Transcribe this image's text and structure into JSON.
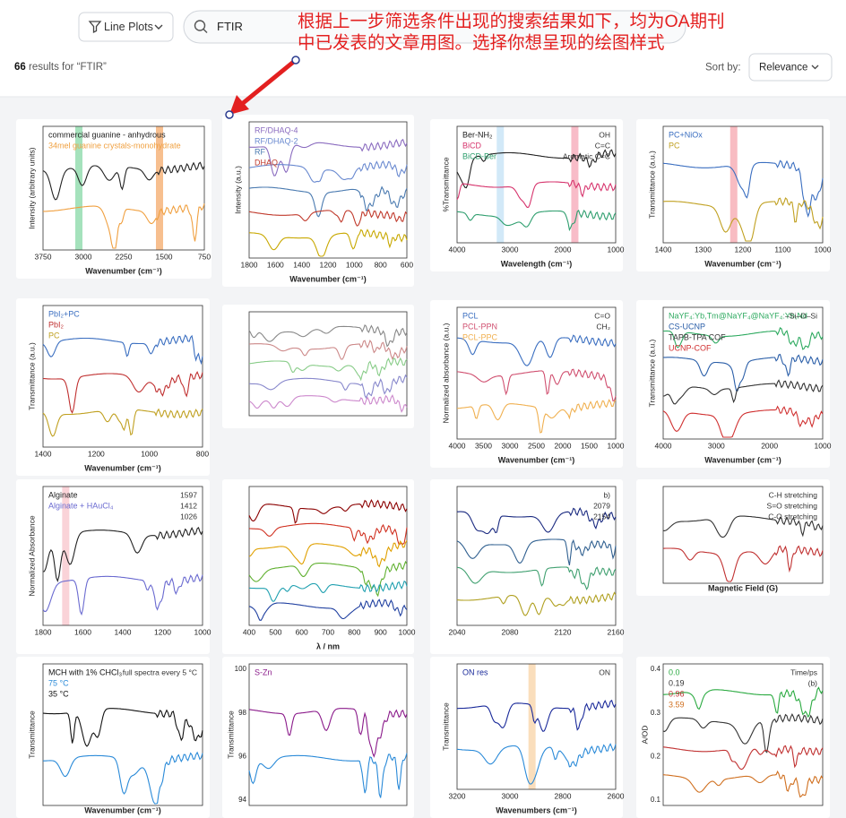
{
  "toolbar": {
    "filter": "Line Plots",
    "search": "FTIR",
    "sort_label": "Sort by:",
    "sort": "Relevance"
  },
  "results": {
    "count": "66",
    "text": " results for “FTIR”"
  },
  "annotation": {
    "lines": [
      "根据上一步筛选条件出现的搜索结果如下，均为OA期刊",
      "中已发表的文章用图。选择你想呈现的绘图样式"
    ]
  },
  "cards": [
    {
      "legend": [
        "commercial guanine - anhydrous",
        "34mel guanine crystals-monohydrate"
      ],
      "ylabel": "Intensity (arbitrary units)",
      "xlabel": "Wavenumber (cm⁻¹)",
      "xticks": [
        "3750",
        "3000",
        "2250",
        "1500",
        "750"
      ]
    },
    {
      "legend": [
        "RF/DHAQ-4",
        "RF/DHAQ-2",
        "RF",
        "DHAQ"
      ],
      "ylabel": "Intensity (a.u.)",
      "xlabel": "Wavenumber (cm⁻¹)",
      "xticks": [
        "1800",
        "1600",
        "1400",
        "1200",
        "1000",
        "800",
        "600"
      ]
    },
    {
      "legend": [
        "Ber-NH₂",
        "BiCD",
        "BiCD-Ber"
      ],
      "notes": [
        "OH",
        "C=C",
        "Aromatic C=C"
      ],
      "ylabel": "%Transmittance",
      "xlabel": "Wavelength (cm⁻¹)",
      "xticks": [
        "4000",
        "3000",
        "2000",
        "1000"
      ]
    },
    {
      "legend": [
        "PC+NiOx",
        "PC"
      ],
      "ylabel": "Transmittance (a.u.)",
      "xlabel": "Wavenumber (cm⁻¹)",
      "xticks": [
        "1400",
        "1300",
        "1200",
        "1100",
        "1000"
      ]
    },
    {
      "legend": [
        "PbI₂+PC",
        "PbI₂",
        "PC"
      ],
      "ylabel": "Transmittance (a.u.)",
      "xlabel": "Wavenumber (cm⁻¹)",
      "xticks": [
        "1400",
        "1200",
        "1000",
        "800"
      ]
    },
    {
      "legend": []
    },
    {
      "legend": [
        "PCL",
        "PCL-PPN",
        "PCL-PPC"
      ],
      "notes": [
        "C=O",
        "CH₂"
      ],
      "ylabel": "Normalized absorbance (a.u.)",
      "xlabel": "Wavenumber (cm⁻¹)",
      "xticks": [
        "4000",
        "3500",
        "3000",
        "2500",
        "2000",
        "1500",
        "1000"
      ]
    },
    {
      "legend": [
        "NaYF₄:Yb,Tm@NaYF₄@NaYF₄:Yb,Nd",
        "CS-UCNP",
        "TAPB-TPA COF",
        "UCNP-COF"
      ],
      "notes": [
        "–Si–O–Si"
      ],
      "ylabel": "Transmittance (a.u.)",
      "xlabel": "Wavenumber (cm⁻¹)",
      "xticks": [
        "4000",
        "3000",
        "2000",
        "1000"
      ]
    },
    {
      "legend": [
        "Alginate",
        "Alginate + HAuCl₄"
      ],
      "notes": [
        "1597",
        "1412",
        "1026"
      ],
      "ylabel": "Normalized Absorbance",
      "xticks": [
        "1800",
        "1600",
        "1400",
        "1200",
        "1000"
      ]
    },
    {
      "legend": [],
      "xlabel": "λ / nm",
      "xticks": [
        "400",
        "500",
        "600",
        "700",
        "800",
        "900",
        "1000"
      ]
    },
    {
      "legend": [],
      "notes": [
        "b)",
        "2079",
        "2154"
      ],
      "xticks": [
        "2040",
        "2080",
        "2120",
        "2160"
      ]
    },
    {
      "legend": [],
      "notes": [
        "C-H stretching",
        "S=O stretching",
        "C-O stretching"
      ],
      "xlabel": "Magnetic Field (G)"
    },
    {
      "legend": [
        "MCH with 1% CHCl₃",
        "75 °C",
        "35 °C"
      ],
      "notes": [
        "full spectra every 5 °C"
      ],
      "ylabel": "Transmittance",
      "xlabel": "Wavenumber (cm⁻¹)"
    },
    {
      "legend": [
        "S-Zn"
      ],
      "ylabel": "Transmittance",
      "yticks": [
        "100",
        "98",
        "96",
        "94"
      ]
    },
    {
      "legend": [
        "ON res"
      ],
      "notes": [
        "ON"
      ],
      "ylabel": "Transmittance",
      "xlabel": "Wavenumbers (cm⁻¹)",
      "xticks": [
        "3200",
        "3000",
        "2800",
        "2600"
      ]
    },
    {
      "legend": [
        "0.0",
        "0.19",
        "0.96",
        "3.59"
      ],
      "notes": [
        "Time/ps",
        "(b)"
      ],
      "ylabel": "A/OD",
      "yticks": [
        "0.4",
        "0.3",
        "0.2",
        "0.1"
      ]
    }
  ]
}
